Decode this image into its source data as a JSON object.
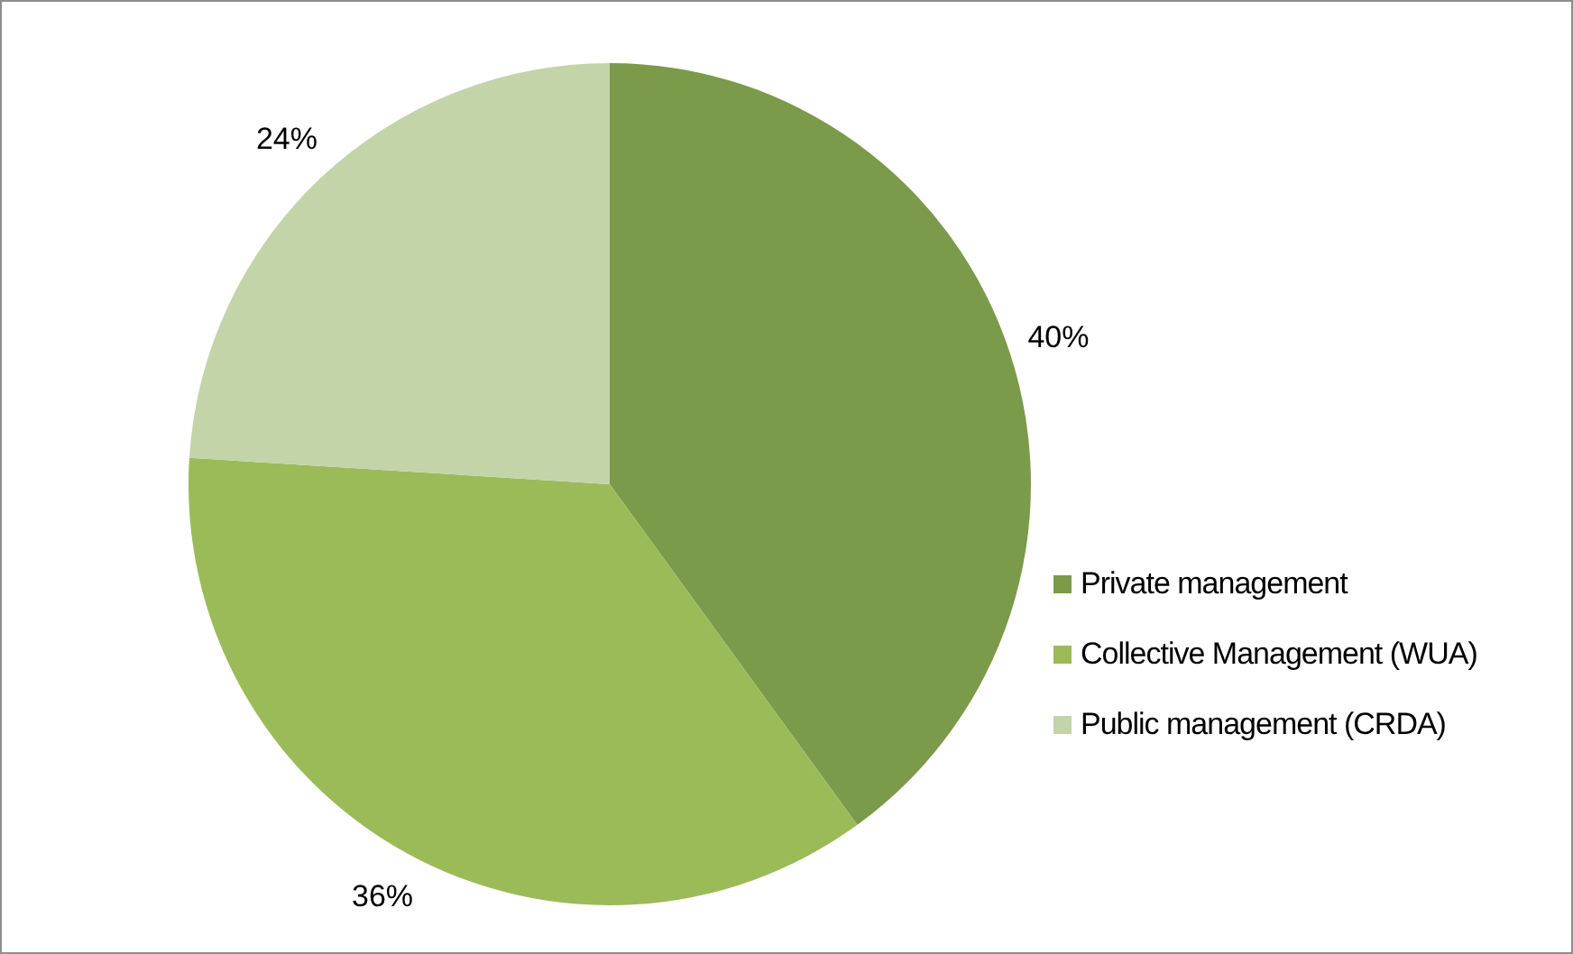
{
  "chart_data": {
    "type": "pie",
    "categories": [
      "Private management",
      "Collective Management (WUA)",
      "Public management (CRDA)"
    ],
    "values": [
      40,
      36,
      24
    ],
    "colors": [
      "#7b9a4a",
      "#9bbb59",
      "#c3d4a9"
    ],
    "value_labels": [
      "40%",
      "36%",
      "24%"
    ],
    "legend": "right"
  }
}
